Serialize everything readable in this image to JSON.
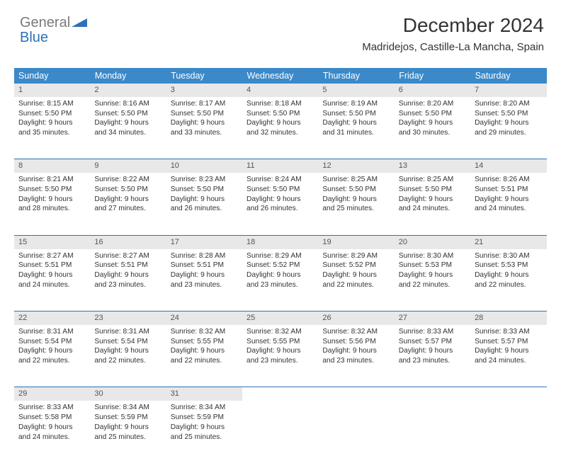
{
  "brand": {
    "part1": "General",
    "part2": "Blue"
  },
  "header": {
    "month_title": "December 2024",
    "location": "Madridejos, Castille-La Mancha, Spain"
  },
  "style": {
    "header_bg": "#3b89c9",
    "header_text": "#ffffff",
    "daynum_bg": "#e8e8e8",
    "rule_color": "#2d71b8",
    "body_text": "#333333",
    "page_bg": "#ffffff",
    "th_fontsize": 12.5,
    "cell_fontsize": 10.2,
    "title_fontsize": 28,
    "location_fontsize": 15
  },
  "daynames": [
    "Sunday",
    "Monday",
    "Tuesday",
    "Wednesday",
    "Thursday",
    "Friday",
    "Saturday"
  ],
  "weeks": [
    [
      {
        "n": "1",
        "sr": "8:15 AM",
        "ss": "5:50 PM",
        "dl": "9 hours and 35 minutes."
      },
      {
        "n": "2",
        "sr": "8:16 AM",
        "ss": "5:50 PM",
        "dl": "9 hours and 34 minutes."
      },
      {
        "n": "3",
        "sr": "8:17 AM",
        "ss": "5:50 PM",
        "dl": "9 hours and 33 minutes."
      },
      {
        "n": "4",
        "sr": "8:18 AM",
        "ss": "5:50 PM",
        "dl": "9 hours and 32 minutes."
      },
      {
        "n": "5",
        "sr": "8:19 AM",
        "ss": "5:50 PM",
        "dl": "9 hours and 31 minutes."
      },
      {
        "n": "6",
        "sr": "8:20 AM",
        "ss": "5:50 PM",
        "dl": "9 hours and 30 minutes."
      },
      {
        "n": "7",
        "sr": "8:20 AM",
        "ss": "5:50 PM",
        "dl": "9 hours and 29 minutes."
      }
    ],
    [
      {
        "n": "8",
        "sr": "8:21 AM",
        "ss": "5:50 PM",
        "dl": "9 hours and 28 minutes."
      },
      {
        "n": "9",
        "sr": "8:22 AM",
        "ss": "5:50 PM",
        "dl": "9 hours and 27 minutes."
      },
      {
        "n": "10",
        "sr": "8:23 AM",
        "ss": "5:50 PM",
        "dl": "9 hours and 26 minutes."
      },
      {
        "n": "11",
        "sr": "8:24 AM",
        "ss": "5:50 PM",
        "dl": "9 hours and 26 minutes."
      },
      {
        "n": "12",
        "sr": "8:25 AM",
        "ss": "5:50 PM",
        "dl": "9 hours and 25 minutes."
      },
      {
        "n": "13",
        "sr": "8:25 AM",
        "ss": "5:50 PM",
        "dl": "9 hours and 24 minutes."
      },
      {
        "n": "14",
        "sr": "8:26 AM",
        "ss": "5:51 PM",
        "dl": "9 hours and 24 minutes."
      }
    ],
    [
      {
        "n": "15",
        "sr": "8:27 AM",
        "ss": "5:51 PM",
        "dl": "9 hours and 24 minutes."
      },
      {
        "n": "16",
        "sr": "8:27 AM",
        "ss": "5:51 PM",
        "dl": "9 hours and 23 minutes."
      },
      {
        "n": "17",
        "sr": "8:28 AM",
        "ss": "5:51 PM",
        "dl": "9 hours and 23 minutes."
      },
      {
        "n": "18",
        "sr": "8:29 AM",
        "ss": "5:52 PM",
        "dl": "9 hours and 23 minutes."
      },
      {
        "n": "19",
        "sr": "8:29 AM",
        "ss": "5:52 PM",
        "dl": "9 hours and 22 minutes."
      },
      {
        "n": "20",
        "sr": "8:30 AM",
        "ss": "5:53 PM",
        "dl": "9 hours and 22 minutes."
      },
      {
        "n": "21",
        "sr": "8:30 AM",
        "ss": "5:53 PM",
        "dl": "9 hours and 22 minutes."
      }
    ],
    [
      {
        "n": "22",
        "sr": "8:31 AM",
        "ss": "5:54 PM",
        "dl": "9 hours and 22 minutes."
      },
      {
        "n": "23",
        "sr": "8:31 AM",
        "ss": "5:54 PM",
        "dl": "9 hours and 22 minutes."
      },
      {
        "n": "24",
        "sr": "8:32 AM",
        "ss": "5:55 PM",
        "dl": "9 hours and 22 minutes."
      },
      {
        "n": "25",
        "sr": "8:32 AM",
        "ss": "5:55 PM",
        "dl": "9 hours and 23 minutes."
      },
      {
        "n": "26",
        "sr": "8:32 AM",
        "ss": "5:56 PM",
        "dl": "9 hours and 23 minutes."
      },
      {
        "n": "27",
        "sr": "8:33 AM",
        "ss": "5:57 PM",
        "dl": "9 hours and 23 minutes."
      },
      {
        "n": "28",
        "sr": "8:33 AM",
        "ss": "5:57 PM",
        "dl": "9 hours and 24 minutes."
      }
    ],
    [
      {
        "n": "29",
        "sr": "8:33 AM",
        "ss": "5:58 PM",
        "dl": "9 hours and 24 minutes."
      },
      {
        "n": "30",
        "sr": "8:34 AM",
        "ss": "5:59 PM",
        "dl": "9 hours and 25 minutes."
      },
      {
        "n": "31",
        "sr": "8:34 AM",
        "ss": "5:59 PM",
        "dl": "9 hours and 25 minutes."
      },
      null,
      null,
      null,
      null
    ]
  ],
  "labels": {
    "sunrise": "Sunrise:",
    "sunset": "Sunset:",
    "daylight": "Daylight:"
  }
}
